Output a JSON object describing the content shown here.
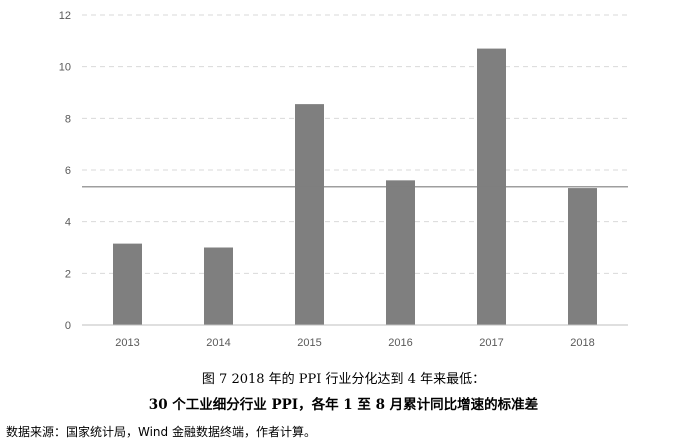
{
  "chart_data": {
    "type": "bar",
    "categories": [
      "2013",
      "2014",
      "2015",
      "2016",
      "2017",
      "2018"
    ],
    "values": [
      3.15,
      3.0,
      8.55,
      5.6,
      10.7,
      5.3
    ],
    "reference_line": 5.35,
    "ylim": [
      0,
      12
    ],
    "yticks": [
      0,
      2,
      4,
      6,
      8,
      10,
      12
    ],
    "grid": true,
    "colors": {
      "bar": "#7f7f7f",
      "reference_line": "#7f7f7f",
      "grid": "#d9d9d9",
      "axis": "#bfbfbf"
    }
  },
  "caption": {
    "line1": "图 7 2018 年的 PPI 行业分化达到 4 年来最低：",
    "line2": "30 个工业细分行业 PPI，各年 1 至 8 月累计同比增速的标准差"
  },
  "source": "数据来源：国家统计局，Wind 金融数据终端，作者计算。"
}
